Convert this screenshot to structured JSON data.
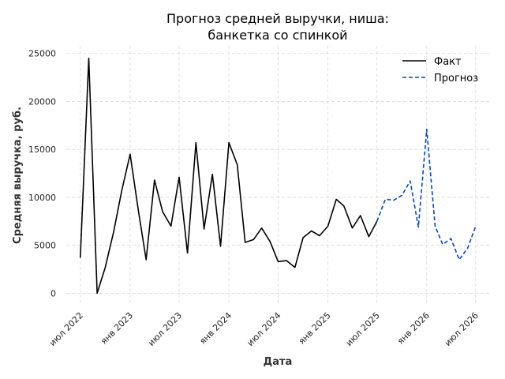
{
  "chart_data": {
    "type": "line",
    "title_lines": [
      "Прогноз средней выручки, ниша:",
      "банкетка со спинкой"
    ],
    "xlabel": "Дата",
    "ylabel": "Средняя выручка, руб.",
    "ylim": [
      -1200,
      25800
    ],
    "xlim": [
      "2022-05-10",
      "2026-08-20"
    ],
    "grid": true,
    "legend_position": "top-right",
    "y_ticks": [
      {
        "value": 0,
        "label": "0"
      },
      {
        "value": 5000,
        "label": "5000"
      },
      {
        "value": 10000,
        "label": "10000"
      },
      {
        "value": 15000,
        "label": "15000"
      },
      {
        "value": 20000,
        "label": "20000"
      },
      {
        "value": 25000,
        "label": "25000"
      }
    ],
    "x_ticks": [
      {
        "date": "2022-07-01",
        "label": "июл 2022"
      },
      {
        "date": "2023-01-01",
        "label": "янв 2023"
      },
      {
        "date": "2023-07-01",
        "label": "июл 2023"
      },
      {
        "date": "2024-01-01",
        "label": "янв 2024"
      },
      {
        "date": "2024-07-01",
        "label": "июл 2024"
      },
      {
        "date": "2025-01-01",
        "label": "янв 2025"
      },
      {
        "date": "2025-07-01",
        "label": "июл 2025"
      },
      {
        "date": "2026-01-01",
        "label": "янв 2026"
      },
      {
        "date": "2026-07-01",
        "label": "июл 2026"
      }
    ],
    "series": [
      {
        "name": "Факт",
        "color": "#000000",
        "style": "solid",
        "points": [
          {
            "x": "2022-07-01",
            "y": 3700
          },
          {
            "x": "2022-08-01",
            "y": 24500
          },
          {
            "x": "2022-09-01",
            "y": 0
          },
          {
            "x": "2022-10-01",
            "y": 2700
          },
          {
            "x": "2022-11-01",
            "y": 6400
          },
          {
            "x": "2022-12-01",
            "y": 10700
          },
          {
            "x": "2023-01-01",
            "y": 14500
          },
          {
            "x": "2023-02-01",
            "y": 8500
          },
          {
            "x": "2023-03-01",
            "y": 3500
          },
          {
            "x": "2023-04-01",
            "y": 11800
          },
          {
            "x": "2023-05-01",
            "y": 8500
          },
          {
            "x": "2023-06-01",
            "y": 7000
          },
          {
            "x": "2023-07-01",
            "y": 12100
          },
          {
            "x": "2023-08-01",
            "y": 4200
          },
          {
            "x": "2023-09-01",
            "y": 15700
          },
          {
            "x": "2023-10-01",
            "y": 6700
          },
          {
            "x": "2023-11-01",
            "y": 12400
          },
          {
            "x": "2023-12-01",
            "y": 4900
          },
          {
            "x": "2024-01-01",
            "y": 15700
          },
          {
            "x": "2024-02-01",
            "y": 13400
          },
          {
            "x": "2024-03-01",
            "y": 5300
          },
          {
            "x": "2024-04-01",
            "y": 5600
          },
          {
            "x": "2024-05-01",
            "y": 6800
          },
          {
            "x": "2024-06-01",
            "y": 5400
          },
          {
            "x": "2024-07-01",
            "y": 3300
          },
          {
            "x": "2024-08-01",
            "y": 3400
          },
          {
            "x": "2024-09-01",
            "y": 2700
          },
          {
            "x": "2024-10-01",
            "y": 5800
          },
          {
            "x": "2024-11-01",
            "y": 6500
          },
          {
            "x": "2024-12-01",
            "y": 6000
          },
          {
            "x": "2025-01-01",
            "y": 7000
          },
          {
            "x": "2025-02-01",
            "y": 9800
          },
          {
            "x": "2025-03-01",
            "y": 9100
          },
          {
            "x": "2025-04-01",
            "y": 6800
          },
          {
            "x": "2025-05-01",
            "y": 8100
          },
          {
            "x": "2025-06-01",
            "y": 5900
          },
          {
            "x": "2025-07-01",
            "y": 7500
          }
        ]
      },
      {
        "name": "Прогноз",
        "color": "#0044cc",
        "style": "dashed",
        "points": [
          {
            "x": "2025-07-01",
            "y": 7500
          },
          {
            "x": "2025-08-01",
            "y": 9800
          },
          {
            "x": "2025-09-01",
            "y": 9700
          },
          {
            "x": "2025-10-01",
            "y": 10200
          },
          {
            "x": "2025-11-01",
            "y": 11700
          },
          {
            "x": "2025-12-01",
            "y": 6900
          },
          {
            "x": "2026-01-01",
            "y": 17100
          },
          {
            "x": "2026-02-01",
            "y": 7000
          },
          {
            "x": "2026-03-01",
            "y": 5100
          },
          {
            "x": "2026-04-01",
            "y": 5700
          },
          {
            "x": "2026-05-01",
            "y": 3500
          },
          {
            "x": "2026-06-01",
            "y": 4700
          },
          {
            "x": "2026-07-01",
            "y": 7000
          }
        ]
      }
    ]
  }
}
